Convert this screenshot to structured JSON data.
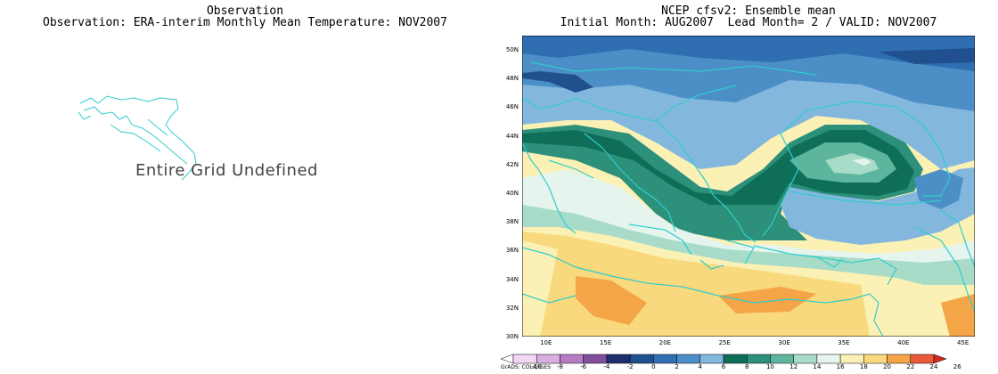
{
  "left_panel": {
    "title_line1": "Observation",
    "title_line2": "Observation: ERA-interim Monthly Mean Temperature: NOV2007",
    "undefined_msg": "Entire Grid Undefined"
  },
  "right_panel": {
    "title_line1": "NCEP cfsv2: Ensemble mean",
    "title_line2": "Initial Month: AUG2007  Lead Month= 2 / VALID: NOV2007",
    "lat_labels": [
      "50N",
      "48N",
      "46N",
      "44N",
      "42N",
      "40N",
      "38N",
      "36N",
      "34N",
      "32N",
      "30N"
    ],
    "lon_labels": [
      "10E",
      "15E",
      "20E",
      "25E",
      "30E",
      "35E",
      "40E",
      "45E"
    ],
    "lat_range": [
      30,
      51
    ],
    "lon_range": [
      8,
      46
    ]
  },
  "colorbar": {
    "ticks": [
      "-10",
      "-8",
      "-6",
      "-4",
      "-2",
      "0",
      "2",
      "4",
      "6",
      "8",
      "10",
      "12",
      "14",
      "16",
      "18",
      "20",
      "22",
      "24",
      "26"
    ],
    "colors": [
      "#ffffff",
      "#f2d8f5",
      "#d9aee0",
      "#b67cc4",
      "#7f4f9e",
      "#1f2f6e",
      "#21508f",
      "#2f6eb0",
      "#4c8fc7",
      "#84b7de",
      "#0f6e58",
      "#2c907a",
      "#5cb59c",
      "#a8dcc8",
      "#e6f4ee",
      "#fbf1b5",
      "#f9d97d",
      "#f4a548",
      "#e85a3a",
      "#d32a1e"
    ],
    "credit": "GrADS: COLA/IGES"
  },
  "legend_colors": {
    "ocean_cold": "#2f6eb0",
    "land_cool": "#84b7de",
    "coast": "#2fcdcd"
  }
}
